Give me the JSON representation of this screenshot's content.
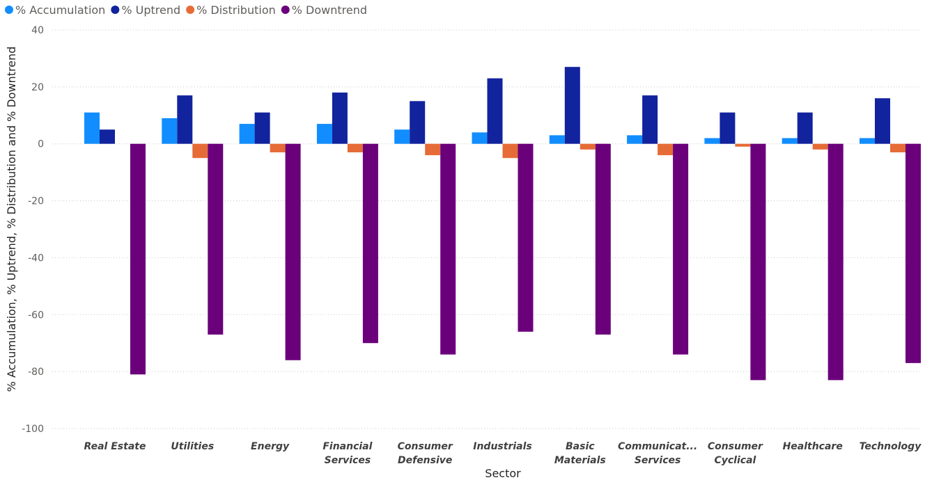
{
  "chart_data": {
    "type": "bar",
    "xlabel": "Sector",
    "ylabel": "% Accumulation, % Uptrend, % Distribution and % Downtrend",
    "ylim": [
      -100,
      40
    ],
    "yticks": [
      40,
      20,
      0,
      -20,
      -40,
      -60,
      -80,
      -100
    ],
    "grid": true,
    "legend_position": "top-left",
    "categories": [
      [
        "Real Estate"
      ],
      [
        "Utilities"
      ],
      [
        "Energy"
      ],
      [
        "Financial",
        "Services"
      ],
      [
        "Consumer",
        "Defensive"
      ],
      [
        "Industrials"
      ],
      [
        "Basic",
        "Materials"
      ],
      [
        "Communicat...",
        "Services"
      ],
      [
        "Consumer",
        "Cyclical"
      ],
      [
        "Healthcare"
      ],
      [
        "Technology"
      ]
    ],
    "series": [
      {
        "name": "% Accumulation",
        "color": "#118dff",
        "values": [
          11,
          9,
          7,
          7,
          5,
          4,
          3,
          3,
          2,
          2,
          2
        ]
      },
      {
        "name": "% Uptrend",
        "color": "#12239e",
        "values": [
          5,
          17,
          11,
          18,
          15,
          23,
          27,
          17,
          11,
          11,
          16
        ]
      },
      {
        "name": "% Distribution",
        "color": "#e66c37",
        "values": [
          0,
          -5,
          -3,
          -3,
          -4,
          -5,
          -2,
          -4,
          -1,
          -2,
          -3
        ]
      },
      {
        "name": "% Downtrend",
        "color": "#6b007b",
        "values": [
          -81,
          -67,
          -76,
          -70,
          -74,
          -66,
          -67,
          -74,
          -83,
          -83,
          -77
        ]
      }
    ]
  }
}
